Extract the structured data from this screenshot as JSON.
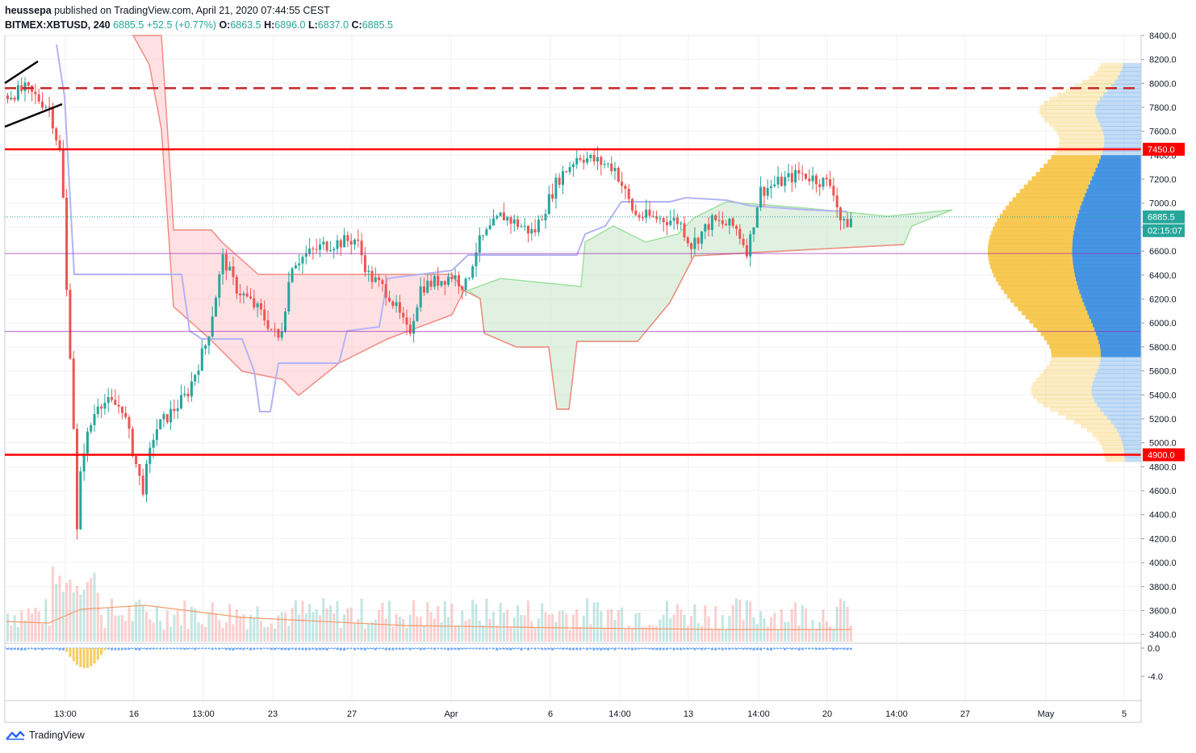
{
  "header": {
    "author": "heussepa",
    "published_text": "published on TradingView.com, April 21, 2020 07:44:55 CEST",
    "symbol": "BITMEX:XBTUSD, 240",
    "last": "6885.5",
    "change": "+52.5 (+0.77%)",
    "o_label": "O:",
    "o": "6863.5",
    "h_label": "H:",
    "h": "6896.0",
    "l_label": "L:",
    "l": "6837.0",
    "c_label": "C:",
    "c": "6885.5"
  },
  "footer": {
    "brand": "TradingView"
  },
  "colors": {
    "up": "#26a69a",
    "down": "#ef5350",
    "support_resistance": "#ff0000",
    "dashed_line": "#c62828",
    "kumo_bull": "#c8e6c9",
    "kumo_bear": "#ffcdd2",
    "kijun": "#b3b3f5",
    "volume_profile_up": "#f6c343",
    "volume_profile_down": "#3d8fe0",
    "price_tag": "#26a69a",
    "ma_line": "#f39c6b",
    "purple_line": "#9c27b0"
  },
  "chart_data": {
    "type": "candlestick",
    "symbol": "BITMEX:XBTUSD",
    "interval": "240",
    "y_axis": {
      "ticks": [
        "8400.0",
        "8200.0",
        "8000.0",
        "7800.0",
        "7600.0",
        "7400.0",
        "7200.0",
        "7000.0",
        "6800.0",
        "6600.0",
        "6400.0",
        "6200.0",
        "6000.0",
        "5800.0",
        "5600.0",
        "5400.0",
        "5200.0",
        "5000.0",
        "4800.0",
        "4600.0",
        "4400.0",
        "4200.0",
        "4000.0",
        "3800.0",
        "3600.0",
        "3400.0"
      ],
      "range": [
        3300,
        8450
      ]
    },
    "oscillator_axis": {
      "ticks": [
        "0.0",
        "-4.0"
      ]
    },
    "x_axis": {
      "ticks": [
        "13:00",
        "16",
        "13:00",
        "23",
        "27",
        "Apr",
        "6",
        "14:00",
        "13",
        "14:00",
        "20",
        "14:00",
        "27",
        "May",
        "5"
      ]
    },
    "price_labels": [
      {
        "value": 7450,
        "text": "7450.0",
        "kind": "resistance"
      },
      {
        "value": 6885.5,
        "text": "6885.5",
        "kind": "last"
      },
      {
        "text": "02:15:07",
        "kind": "countdown"
      },
      {
        "value": 4900,
        "text": "4900.0",
        "kind": "support"
      }
    ],
    "horizontal_lines": [
      {
        "value": 7450,
        "style": "solid",
        "color": "#ff0000"
      },
      {
        "value": 4900,
        "style": "solid",
        "color": "#ff0000"
      },
      {
        "value": 7960,
        "style": "dashed",
        "color": "#c62828"
      },
      {
        "value": 6580,
        "style": "solid-thin",
        "color": "#9c27b0"
      },
      {
        "value": 5930,
        "style": "solid-thin",
        "color": "#9c27b0"
      }
    ],
    "last_price": 6885.5
  }
}
